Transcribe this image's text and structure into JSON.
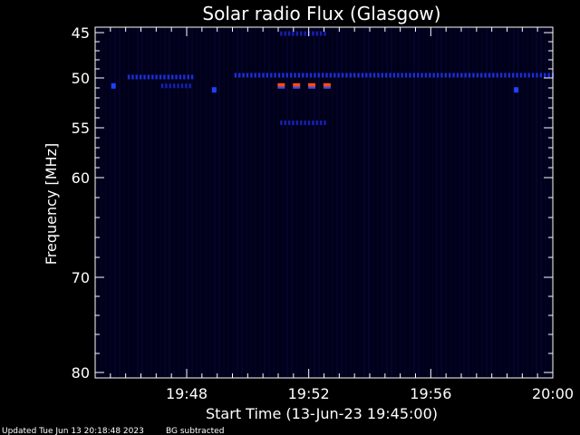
{
  "chart_data": {
    "type": "heatmap",
    "title": "Solar radio Flux (Glasgow)",
    "xlabel": "Start Time (13-Jun-23 19:45:00)",
    "ylabel": "Frequency [MHz]",
    "x_start": "19:45",
    "x_end": "20:00",
    "xlim": [
      0,
      15
    ],
    "ylim": [
      45,
      80
    ],
    "x_ticks": [
      {
        "min": 3,
        "label": "19:48"
      },
      {
        "min": 7,
        "label": "19:52"
      },
      {
        "min": 11,
        "label": "19:56"
      },
      {
        "min": 15,
        "label": "20:00"
      }
    ],
    "y_ticks": [
      45,
      50,
      55,
      60,
      70,
      80
    ],
    "features": [
      {
        "kind": "band",
        "freq": 49.7,
        "t_start": 4.6,
        "t_end": 15.0,
        "color": "#1a2fd6"
      },
      {
        "kind": "band",
        "freq": 49.9,
        "t_start": 1.1,
        "t_end": 3.3,
        "color": "#1a2fd6"
      },
      {
        "kind": "band",
        "freq": 50.8,
        "t_start": 2.2,
        "t_end": 3.2,
        "color": "#1520b0"
      },
      {
        "kind": "band",
        "freq": 54.5,
        "t_start": 6.1,
        "t_end": 7.6,
        "color": "#1520b0"
      },
      {
        "kind": "band",
        "freq": 45.1,
        "t_start": 6.1,
        "t_end": 7.6,
        "color": "#1520b0"
      },
      {
        "kind": "spot",
        "freq": 50.8,
        "t": 0.6,
        "color": "#2040ff"
      },
      {
        "kind": "spot",
        "freq": 51.2,
        "t": 3.9,
        "color": "#2040ff"
      },
      {
        "kind": "spot",
        "freq": 51.2,
        "t": 13.8,
        "color": "#2040ff"
      },
      {
        "kind": "burst",
        "freq": 50.8,
        "t": 6.1,
        "color": "#ff4a1a"
      },
      {
        "kind": "burst",
        "freq": 50.8,
        "t": 6.6,
        "color": "#ff4a1a"
      },
      {
        "kind": "burst",
        "freq": 50.8,
        "t": 7.1,
        "color": "#ff4a1a"
      },
      {
        "kind": "burst",
        "freq": 50.8,
        "t": 7.6,
        "color": "#ff4a1a"
      }
    ],
    "background_color": "#00001a",
    "axis_color": "#ffffff"
  },
  "footer": {
    "updated": "Updated Tue Jun 13 20:18:48 2023",
    "note": "BG subtracted"
  }
}
